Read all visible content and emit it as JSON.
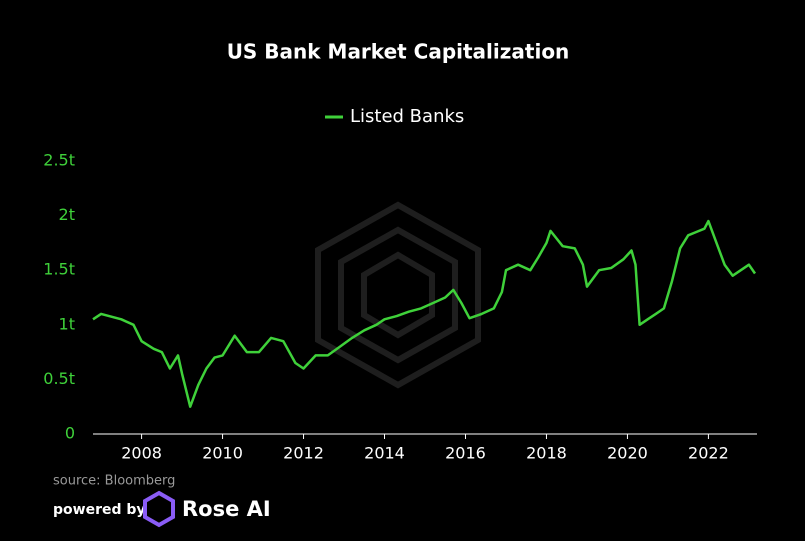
{
  "chart_data": {
    "type": "line",
    "title": "US Bank Market Capitalization",
    "x": [
      2006.8,
      2007.0,
      2007.5,
      2007.8,
      2008.0,
      2008.3,
      2008.5,
      2008.7,
      2008.9,
      2009.0,
      2009.2,
      2009.4,
      2009.6,
      2009.8,
      2010.0,
      2010.3,
      2010.6,
      2010.9,
      2011.2,
      2011.5,
      2011.8,
      2012.0,
      2012.3,
      2012.6,
      2012.9,
      2013.2,
      2013.5,
      2013.8,
      2014.0,
      2014.3,
      2014.6,
      2014.9,
      2015.2,
      2015.5,
      2015.7,
      2015.9,
      2016.1,
      2016.4,
      2016.7,
      2016.9,
      2017.0,
      2017.3,
      2017.6,
      2017.8,
      2018.0,
      2018.1,
      2018.4,
      2018.7,
      2018.9,
      2019.0,
      2019.3,
      2019.6,
      2019.9,
      2020.1,
      2020.2,
      2020.3,
      2020.5,
      2020.7,
      2020.9,
      2021.1,
      2021.3,
      2021.5,
      2021.7,
      2021.9,
      2022.0,
      2022.2,
      2022.4,
      2022.6,
      2022.8,
      2023.0,
      2023.15
    ],
    "series": [
      {
        "name": "Listed Banks",
        "color": "#3fd13a",
        "values": [
          1.05,
          1.1,
          1.05,
          1.0,
          0.85,
          0.78,
          0.75,
          0.6,
          0.72,
          0.55,
          0.25,
          0.45,
          0.6,
          0.7,
          0.72,
          0.9,
          0.75,
          0.75,
          0.88,
          0.85,
          0.65,
          0.6,
          0.72,
          0.72,
          0.8,
          0.88,
          0.95,
          1.0,
          1.05,
          1.08,
          1.12,
          1.15,
          1.2,
          1.25,
          1.32,
          1.2,
          1.06,
          1.1,
          1.15,
          1.3,
          1.5,
          1.55,
          1.5,
          1.62,
          1.75,
          1.86,
          1.72,
          1.7,
          1.55,
          1.35,
          1.5,
          1.52,
          1.6,
          1.68,
          1.55,
          1.0,
          1.05,
          1.1,
          1.15,
          1.4,
          1.7,
          1.82,
          1.85,
          1.88,
          1.95,
          1.75,
          1.55,
          1.45,
          1.5,
          1.55,
          1.47
        ]
      }
    ],
    "xlim": [
      2006.8,
      2023.2
    ],
    "xticks": [
      2008,
      2010,
      2012,
      2014,
      2016,
      2018,
      2020,
      2022
    ],
    "ylim": [
      0,
      2.5
    ],
    "yticks": [
      0,
      {
        "value": 0.5,
        "label": "0.5t"
      },
      {
        "value": 1,
        "label": "1t"
      },
      {
        "value": 1.5,
        "label": "1.5t"
      },
      {
        "value": 2,
        "label": "2t"
      },
      {
        "value": 2.5,
        "label": "2.5t"
      }
    ],
    "source": "source: Bloomberg",
    "powered_by": "powered by",
    "brand": "Rose AI"
  }
}
